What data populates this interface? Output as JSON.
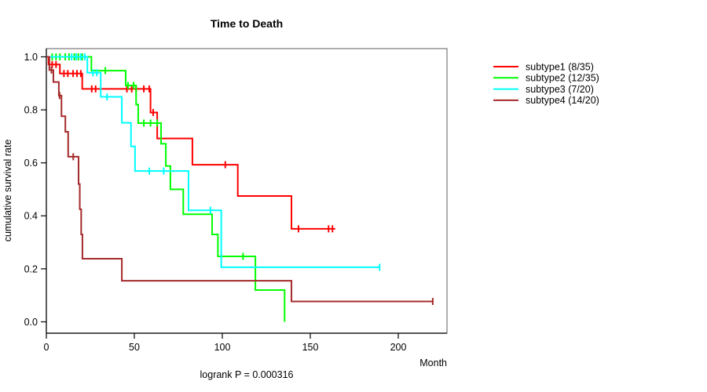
{
  "chart_data": {
    "type": "line",
    "chart_kind": "kaplan-meier-step",
    "title": "Time to Death",
    "xlabel": "Month",
    "ylabel": "cumulative survival rate",
    "footer": "logrank P = 0.000316",
    "xlim": [
      0,
      228
    ],
    "ylim": [
      0,
      1.0
    ],
    "grid": false,
    "legend_position": "right",
    "x_ticks": [
      0,
      50,
      100,
      150,
      200
    ],
    "y_ticks": [
      {
        "value": 1.0,
        "label": "1.0"
      },
      {
        "value": 0.8,
        "label": "0.8"
      },
      {
        "value": 0.6,
        "label": "0.6"
      },
      {
        "value": 0.4,
        "label": "0.4"
      },
      {
        "value": 0.2,
        "label": "0.2"
      },
      {
        "value": 0.0,
        "label": "0.0"
      }
    ],
    "series": [
      {
        "name": "subtype1",
        "label": "subtype1 (8/35)",
        "color": "#ff0000",
        "steps": [
          [
            0,
            1.0
          ],
          [
            1.2,
            0.971
          ],
          [
            7.7,
            0.937
          ],
          [
            20.4,
            0.879
          ],
          [
            59.2,
            0.79
          ],
          [
            63.0,
            0.692
          ],
          [
            83.0,
            0.593
          ],
          [
            108.8,
            0.475
          ],
          [
            139.3,
            0.351
          ]
        ],
        "end_month": 164.2,
        "censors": [
          [
            3.3,
            0.971
          ],
          [
            5.5,
            0.971
          ],
          [
            10.0,
            0.937
          ],
          [
            12.2,
            0.937
          ],
          [
            15.2,
            0.937
          ],
          [
            17.4,
            0.937
          ],
          [
            19.6,
            0.937
          ],
          [
            25.8,
            0.879
          ],
          [
            28.0,
            0.879
          ],
          [
            45.8,
            0.879
          ],
          [
            48.5,
            0.879
          ],
          [
            51.0,
            0.879
          ],
          [
            55.4,
            0.879
          ],
          [
            58.5,
            0.879
          ],
          [
            60.7,
            0.79
          ],
          [
            101.7,
            0.593
          ],
          [
            143.3,
            0.351
          ],
          [
            160.4,
            0.351
          ],
          [
            162.6,
            0.351
          ]
        ]
      },
      {
        "name": "subtype2",
        "label": "subtype2 (12/35)",
        "color": "#00ff00",
        "steps": [
          [
            0,
            1.0
          ],
          [
            25.6,
            0.948
          ],
          [
            45.1,
            0.892
          ],
          [
            51.0,
            0.82
          ],
          [
            52.2,
            0.75
          ],
          [
            65.2,
            0.672
          ],
          [
            67.9,
            0.588
          ],
          [
            70.5,
            0.5
          ],
          [
            77.8,
            0.406
          ],
          [
            94.2,
            0.33
          ],
          [
            97.5,
            0.247
          ],
          [
            118.8,
            0.12
          ],
          [
            135.4,
            0.0
          ]
        ],
        "end_month": 135.4,
        "censors": [
          [
            3.3,
            1.0
          ],
          [
            5.5,
            1.0
          ],
          [
            7.7,
            1.0
          ],
          [
            10.7,
            1.0
          ],
          [
            12.9,
            1.0
          ],
          [
            15.9,
            1.0
          ],
          [
            18.2,
            1.0
          ],
          [
            20.4,
            1.0
          ],
          [
            33.5,
            0.948
          ],
          [
            46.4,
            0.892
          ],
          [
            49.6,
            0.892
          ],
          [
            55.4,
            0.75
          ],
          [
            59.2,
            0.75
          ],
          [
            63.0,
            0.75
          ],
          [
            111.8,
            0.247
          ]
        ]
      },
      {
        "name": "subtype3",
        "label": "subtype3 (7/20)",
        "color": "#00ffff",
        "steps": [
          [
            0,
            1.0
          ],
          [
            23.3,
            0.94
          ],
          [
            30.9,
            0.849
          ],
          [
            42.9,
            0.751
          ],
          [
            48.1,
            0.662
          ],
          [
            50.4,
            0.569
          ],
          [
            80.8,
            0.421
          ],
          [
            99.4,
            0.206
          ]
        ],
        "end_month": 189.4,
        "censors": [
          [
            14.4,
            1.0
          ],
          [
            17.0,
            1.0
          ],
          [
            19.6,
            1.0
          ],
          [
            21.9,
            1.0
          ],
          [
            26.5,
            0.94
          ],
          [
            28.7,
            0.94
          ],
          [
            34.5,
            0.849
          ],
          [
            58.5,
            0.569
          ],
          [
            66.7,
            0.569
          ],
          [
            93.3,
            0.421
          ],
          [
            189.4,
            0.206
          ]
        ]
      },
      {
        "name": "subtype4",
        "label": "subtype4 (14/20)",
        "color": "#a52a2a",
        "steps": [
          [
            0,
            1.0
          ],
          [
            1.7,
            0.95
          ],
          [
            4.0,
            0.905
          ],
          [
            7.1,
            0.854
          ],
          [
            8.6,
            0.776
          ],
          [
            10.8,
            0.717
          ],
          [
            12.4,
            0.623
          ],
          [
            18.3,
            0.52
          ],
          [
            19.0,
            0.425
          ],
          [
            19.8,
            0.33
          ],
          [
            20.5,
            0.238
          ],
          [
            42.9,
            0.155
          ],
          [
            139.3,
            0.077
          ]
        ],
        "end_month": 219.6,
        "censors": [
          [
            2.9,
            0.95
          ],
          [
            7.5,
            0.854
          ],
          [
            15.3,
            0.623
          ],
          [
            219.6,
            0.077
          ]
        ]
      }
    ]
  }
}
